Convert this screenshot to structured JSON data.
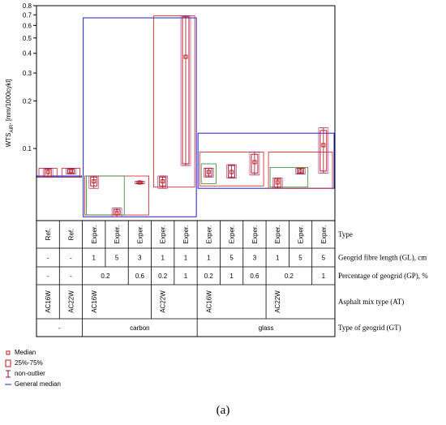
{
  "chart_data": {
    "type": "boxplot",
    "ylabel": "WTS",
    "ylabel_sub": "AIR",
    "ylabel_unit": ", [mm/1000cykl]",
    "y_scale": "log",
    "ylim": [
      0.035,
      0.8
    ],
    "y_ticks": [
      0.1,
      0.2,
      0.3,
      0.4,
      0.5,
      0.6,
      0.7,
      0.8
    ],
    "y_tick_labels": [
      "0.1",
      "0.2",
      "0.3",
      "0.4",
      "0.5",
      "0.6",
      "0.7",
      "0.8"
    ],
    "general_median": 0.067,
    "categories": [
      {
        "type": "Ref.",
        "gl": "-",
        "gp": "-",
        "at": "AC16W",
        "gt": "-"
      },
      {
        "type": "Ref.",
        "gl": "-",
        "gp": "-",
        "at": "AC22W",
        "gt": "-"
      },
      {
        "type": "Exper.",
        "gl": "1",
        "gp": "0.2",
        "at": "AC16W",
        "gt": "carbon"
      },
      {
        "type": "Exper.",
        "gl": "5",
        "gp": "0.2",
        "at": "AC16W",
        "gt": "carbon"
      },
      {
        "type": "Exper.",
        "gl": "3",
        "gp": "0.6",
        "at": "AC16W",
        "gt": "carbon"
      },
      {
        "type": "Exper.",
        "gl": "1",
        "gp": "0.2",
        "at": "AC22W",
        "gt": "carbon"
      },
      {
        "type": "Exper.",
        "gl": "1",
        "gp": "1",
        "at": "AC22W",
        "gt": "carbon"
      },
      {
        "type": "Exper.",
        "gl": "1",
        "gp": "0.2",
        "at": "AC16W",
        "gt": "glass"
      },
      {
        "type": "Exper.",
        "gl": "5",
        "gp": "1",
        "at": "AC16W",
        "gt": "glass"
      },
      {
        "type": "Exper.",
        "gl": "3",
        "gp": "0.6",
        "at": "AC16W",
        "gt": "glass"
      },
      {
        "type": "Exper.",
        "gl": "1",
        "gp": "0.2",
        "at": "AC22W",
        "gt": "glass"
      },
      {
        "type": "Exper.",
        "gl": "5",
        "gp": "0.2",
        "at": "AC22W",
        "gt": "glass"
      },
      {
        "type": "Exper.",
        "gl": "5",
        "gp": "1",
        "at": "AC22W",
        "gt": "glass"
      }
    ],
    "boxes": [
      {
        "median": 0.071,
        "q1": 0.067,
        "q3": 0.074,
        "min": 0.066,
        "max": 0.075
      },
      {
        "median": 0.072,
        "q1": 0.07,
        "q3": 0.074,
        "min": 0.069,
        "max": 0.075
      },
      {
        "median": 0.062,
        "q1": 0.058,
        "q3": 0.066,
        "min": 0.056,
        "max": 0.067
      },
      {
        "median": 0.039,
        "q1": 0.038,
        "q3": 0.041,
        "min": 0.037,
        "max": 0.042
      },
      {
        "median": 0.061,
        "q1": 0.06,
        "q3": 0.061,
        "min": 0.06,
        "max": 0.062
      },
      {
        "median": 0.062,
        "q1": 0.058,
        "q3": 0.066,
        "min": 0.056,
        "max": 0.067
      },
      {
        "median": 0.38,
        "q1": 0.08,
        "q3": 0.68,
        "min": 0.078,
        "max": 0.69
      },
      {
        "median": 0.071,
        "q1": 0.067,
        "q3": 0.075,
        "min": 0.066,
        "max": 0.075
      },
      {
        "median": 0.071,
        "q1": 0.066,
        "q3": 0.078,
        "min": 0.065,
        "max": 0.079
      },
      {
        "median": 0.082,
        "q1": 0.07,
        "q3": 0.092,
        "min": 0.068,
        "max": 0.095
      },
      {
        "median": 0.061,
        "q1": 0.057,
        "q3": 0.064,
        "min": 0.056,
        "max": 0.065
      },
      {
        "median": 0.072,
        "q1": 0.07,
        "q3": 0.075,
        "min": 0.069,
        "max": 0.075
      },
      {
        "median": 0.105,
        "q1": 0.072,
        "q3": 0.13,
        "min": 0.07,
        "max": 0.135
      }
    ],
    "group_medians": {
      "gt": [
        {
          "label": "-",
          "from": 0,
          "to": 1,
          "blue": 0.067
        },
        {
          "label": "carbon",
          "from": 2,
          "to": 6,
          "blue": 0.67
        },
        {
          "label": "glass",
          "from": 7,
          "to": 12,
          "blue": 0.125
        }
      ],
      "gt_low": [
        {
          "from": 0,
          "to": 1,
          "blue_low": 0.066
        },
        {
          "from": 2,
          "to": 6,
          "blue_low": 0.037
        },
        {
          "from": 7,
          "to": 12,
          "blue_low": 0.056
        }
      ],
      "at": [
        {
          "from": 0,
          "to": 0,
          "red": 0.075,
          "low": 0.066
        },
        {
          "from": 1,
          "to": 1,
          "red": 0.075,
          "low": 0.066
        },
        {
          "from": 2,
          "to": 4,
          "red": 0.067,
          "low": 0.038
        },
        {
          "from": 5,
          "to": 6,
          "red": 0.69,
          "low": 0.057
        },
        {
          "from": 7,
          "to": 9,
          "red": 0.095,
          "low": 0.058
        },
        {
          "from": 10,
          "to": 12,
          "red": 0.095,
          "low": 0.056
        }
      ],
      "gp": [
        {
          "from": 2,
          "to": 3,
          "green": 0.067,
          "low": 0.038
        },
        {
          "from": 7,
          "to": 7,
          "green": 0.08,
          "low": 0.06
        },
        {
          "from": 10,
          "to": 11,
          "green": 0.076,
          "low": 0.057
        }
      ]
    }
  },
  "table": {
    "row_labels": [
      "Type",
      "Geogrid fibre length (GL), cm",
      "Percentage of geogrid (GP), %",
      "Asphalt mix type (AT)",
      "Type of geogrid (GT)"
    ],
    "gp_merged": [
      {
        "from": 0,
        "to": 0,
        "text": "-"
      },
      {
        "from": 1,
        "to": 1,
        "text": "-"
      },
      {
        "from": 2,
        "to": 3,
        "text": "0.2"
      },
      {
        "from": 4,
        "to": 4,
        "text": "0.6"
      },
      {
        "from": 5,
        "to": 5,
        "text": "0.2"
      },
      {
        "from": 6,
        "to": 6,
        "text": "1"
      },
      {
        "from": 7,
        "to": 7,
        "text": "0.2"
      },
      {
        "from": 8,
        "to": 8,
        "text": "1"
      },
      {
        "from": 9,
        "to": 9,
        "text": "0.6"
      },
      {
        "from": 10,
        "to": 11,
        "text": "0.2"
      },
      {
        "from": 12,
        "to": 12,
        "text": "1"
      }
    ],
    "at_merged": [
      {
        "from": 0,
        "to": 0,
        "text": "AC16W"
      },
      {
        "from": 1,
        "to": 1,
        "text": "AC22W"
      },
      {
        "from": 2,
        "to": 4,
        "text": "AC16W"
      },
      {
        "from": 5,
        "to": 6,
        "text": "AC22W"
      },
      {
        "from": 7,
        "to": 9,
        "text": "AC16W"
      },
      {
        "from": 10,
        "to": 12,
        "text": "AC22W"
      }
    ],
    "gt_merged": [
      {
        "from": 0,
        "to": 1,
        "text": "-"
      },
      {
        "from": 2,
        "to": 6,
        "text": "carbon"
      },
      {
        "from": 7,
        "to": 12,
        "text": "glass"
      }
    ]
  },
  "legend": {
    "median": "Median",
    "box": "25%-75%",
    "whisker": "non-outlier",
    "general_median": "General median"
  },
  "caption": "(a)",
  "colors": {
    "median_marker": "#c0151c",
    "box": "#c0151c",
    "whisker": "#8a1a2c",
    "general_median": "#1f1fd0",
    "gp_group": "#2e8b2e",
    "at_group": "#d81b1b",
    "inner": "#a52a8a"
  }
}
